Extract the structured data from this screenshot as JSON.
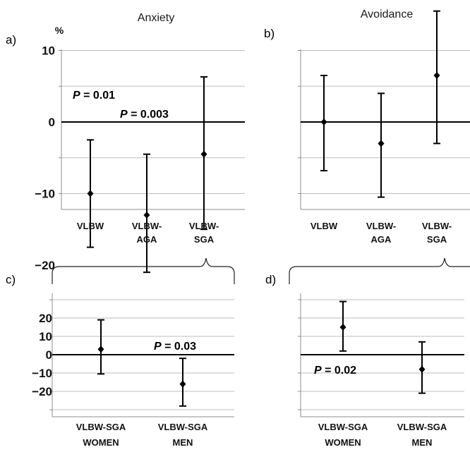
{
  "column_titles": [
    "Anxiety",
    "Avoidance"
  ],
  "unit_label": "%",
  "chart_data": [
    {
      "panel": "a)",
      "type": "scatter",
      "categories": [
        [
          "VLBW"
        ],
        [
          "VLBW-",
          "AGA"
        ],
        [
          "VLBW-",
          "SGA"
        ]
      ],
      "points": [
        {
          "mean": -10,
          "low": -17.5,
          "high": -2.5
        },
        {
          "mean": -13,
          "low": -21,
          "high": -4.5
        },
        {
          "mean": -4.5,
          "low": -15,
          "high": 6.3
        }
      ],
      "ylim": [
        -25,
        20
      ],
      "yticks": [
        20,
        10,
        0,
        -10,
        -20
      ],
      "ytick_labels": [
        "20",
        "10",
        "0",
        "-10",
        "-20"
      ],
      "annotations": [
        {
          "italic": "P",
          "text": " = 0.01"
        },
        {
          "italic": "P",
          "text": " = 0.003"
        }
      ]
    },
    {
      "panel": "b)",
      "type": "scatter",
      "categories": [
        [
          "VLBW"
        ],
        [
          "VLBW-",
          "AGA"
        ],
        [
          "VLBW-",
          "SGA"
        ]
      ],
      "points": [
        {
          "mean": 0,
          "low": -6.8,
          "high": 6.5
        },
        {
          "mean": -3,
          "low": -10.5,
          "high": 4
        },
        {
          "mean": 6.5,
          "low": -3,
          "high": 15.5
        }
      ],
      "ylim": [
        -25,
        20
      ],
      "yticks": [
        20,
        10,
        0,
        -10,
        -20
      ],
      "ytick_labels": [],
      "annotations": []
    },
    {
      "panel": "c)",
      "type": "scatter",
      "categories": [
        [
          "VLBW-SGA",
          "WOMEN"
        ],
        [
          "VLBW-SGA",
          "MEN"
        ]
      ],
      "points": [
        {
          "mean": 3,
          "low": -10.5,
          "high": 19
        },
        {
          "mean": -16,
          "low": -28,
          "high": -2
        }
      ],
      "ylim": [
        -30,
        30
      ],
      "yticks": [
        20,
        10,
        0,
        -10,
        -20
      ],
      "ytick_labels": [
        "20",
        "10",
        "0",
        "-10",
        "-20"
      ],
      "annotations": [
        {
          "italic": "P",
          "text": " = 0.03"
        }
      ]
    },
    {
      "panel": "d)",
      "type": "scatter",
      "categories": [
        [
          "VLBW-SGA",
          "WOMEN"
        ],
        [
          "VLBW-SGA",
          "MEN"
        ]
      ],
      "points": [
        {
          "mean": 15,
          "low": 2,
          "high": 29
        },
        {
          "mean": -8,
          "low": -21,
          "high": 7
        }
      ],
      "ylim": [
        -30,
        30
      ],
      "yticks": [
        20,
        10,
        0,
        -10,
        -20
      ],
      "ytick_labels": [],
      "annotations": [
        {
          "italic": "P",
          "text": " = 0.02"
        }
      ]
    }
  ]
}
